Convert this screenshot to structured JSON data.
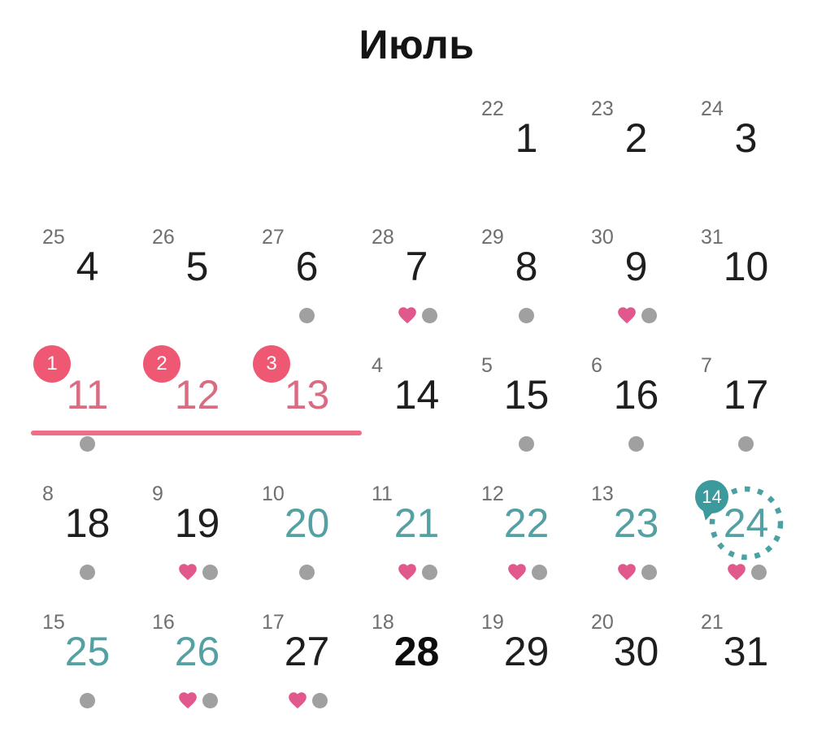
{
  "title": "Июль",
  "colors": {
    "text": "#1e1e1e",
    "cycle_label": "#6f6f6f",
    "dot": "#a0a0a0",
    "heart": "#e0588c",
    "period_accent": "#ef5873",
    "period_text": "#d96b82",
    "underline": "#ee6e87",
    "fertile_text": "#55a0a2",
    "ovulation_accent": "#3d9a9c",
    "ovulation_ring": "#4aa0a2"
  },
  "period_underline": {
    "from_day": 11,
    "to_day": 13
  },
  "weeks": [
    [
      null,
      null,
      null,
      null,
      {
        "day": 1,
        "cycle": "22",
        "style": "normal",
        "markers": []
      },
      {
        "day": 2,
        "cycle": "23",
        "style": "normal",
        "markers": []
      },
      {
        "day": 3,
        "cycle": "24",
        "style": "normal",
        "markers": []
      }
    ],
    [
      {
        "day": 4,
        "cycle": "25",
        "style": "normal",
        "markers": []
      },
      {
        "day": 5,
        "cycle": "26",
        "style": "normal",
        "markers": []
      },
      {
        "day": 6,
        "cycle": "27",
        "style": "normal",
        "markers": [
          "dot"
        ]
      },
      {
        "day": 7,
        "cycle": "28",
        "style": "normal",
        "markers": [
          "heart",
          "dot"
        ]
      },
      {
        "day": 8,
        "cycle": "29",
        "style": "normal",
        "markers": [
          "dot"
        ]
      },
      {
        "day": 9,
        "cycle": "30",
        "style": "normal",
        "markers": [
          "heart",
          "dot"
        ]
      },
      {
        "day": 10,
        "cycle": "31",
        "style": "normal",
        "markers": []
      }
    ],
    [
      {
        "day": 11,
        "style": "period",
        "badge": {
          "text": "1",
          "type": "period"
        },
        "markers": [
          "dot"
        ]
      },
      {
        "day": 12,
        "style": "period",
        "badge": {
          "text": "2",
          "type": "period"
        },
        "markers": []
      },
      {
        "day": 13,
        "style": "period",
        "badge": {
          "text": "3",
          "type": "period"
        },
        "markers": []
      },
      {
        "day": 14,
        "cycle": "4",
        "style": "normal",
        "markers": []
      },
      {
        "day": 15,
        "cycle": "5",
        "style": "normal",
        "markers": [
          "dot"
        ]
      },
      {
        "day": 16,
        "cycle": "6",
        "style": "normal",
        "markers": [
          "dot"
        ]
      },
      {
        "day": 17,
        "cycle": "7",
        "style": "normal",
        "markers": [
          "dot"
        ]
      }
    ],
    [
      {
        "day": 18,
        "cycle": "8",
        "style": "normal",
        "markers": [
          "dot"
        ]
      },
      {
        "day": 19,
        "cycle": "9",
        "style": "normal",
        "markers": [
          "heart",
          "dot"
        ]
      },
      {
        "day": 20,
        "cycle": "10",
        "style": "fertile",
        "markers": [
          "dot"
        ]
      },
      {
        "day": 21,
        "cycle": "11",
        "style": "fertile",
        "markers": [
          "heart",
          "dot"
        ]
      },
      {
        "day": 22,
        "cycle": "12",
        "style": "fertile",
        "markers": [
          "heart",
          "dot"
        ]
      },
      {
        "day": 23,
        "cycle": "13",
        "style": "fertile",
        "markers": [
          "heart",
          "dot"
        ]
      },
      {
        "day": 24,
        "style": "fertile",
        "badge": {
          "text": "14",
          "type": "ovulation"
        },
        "ring": true,
        "markers": [
          "heart",
          "dot"
        ]
      }
    ],
    [
      {
        "day": 25,
        "cycle": "15",
        "style": "fertile",
        "markers": [
          "dot"
        ]
      },
      {
        "day": 26,
        "cycle": "16",
        "style": "fertile",
        "markers": [
          "heart",
          "dot"
        ]
      },
      {
        "day": 27,
        "cycle": "17",
        "style": "normal",
        "markers": [
          "heart",
          "dot"
        ]
      },
      {
        "day": 28,
        "cycle": "18",
        "style": "today",
        "markers": []
      },
      {
        "day": 29,
        "cycle": "19",
        "style": "normal",
        "markers": []
      },
      {
        "day": 30,
        "cycle": "20",
        "style": "normal",
        "markers": []
      },
      {
        "day": 31,
        "cycle": "21",
        "style": "normal",
        "markers": []
      }
    ]
  ]
}
